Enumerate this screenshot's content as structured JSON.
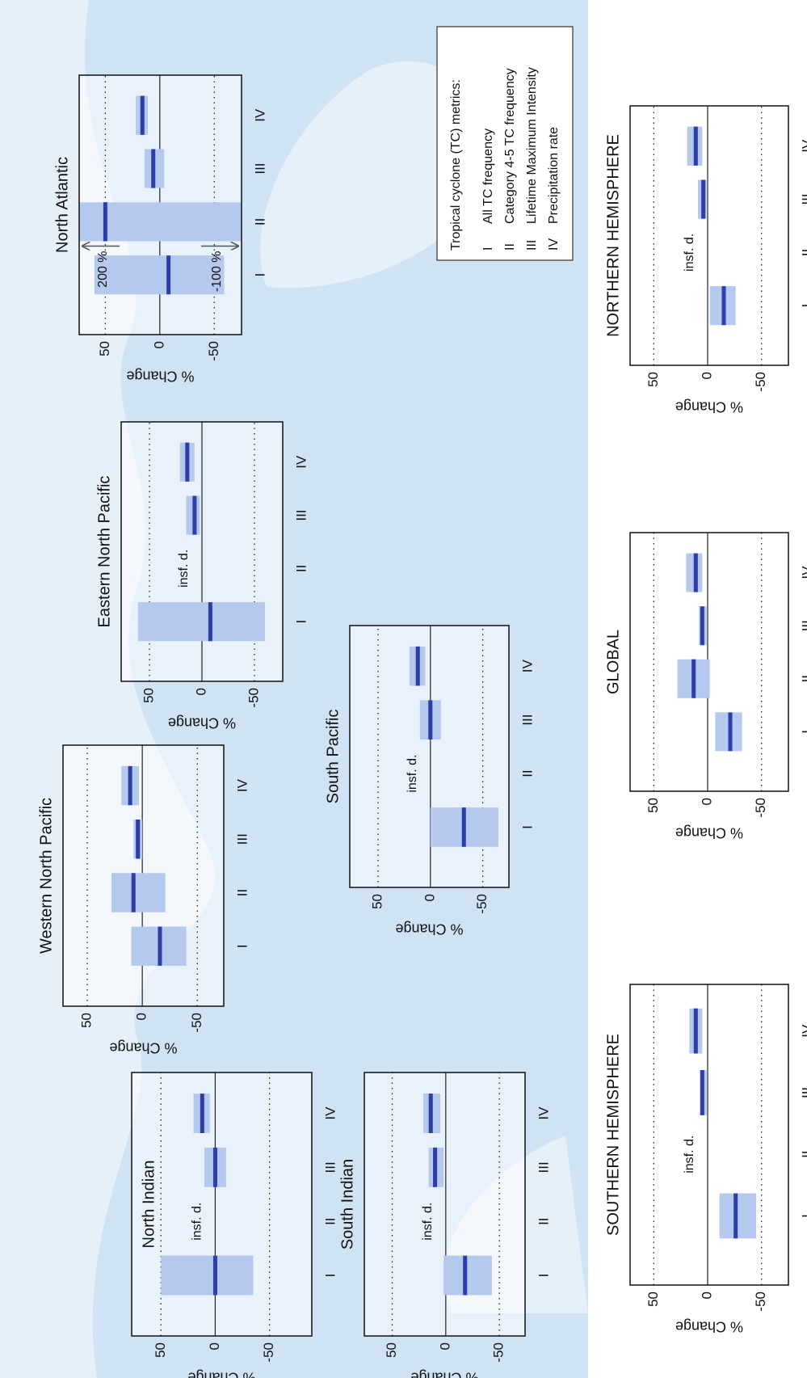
{
  "chart_data": [
    {
      "type": "range-bar",
      "title": "North Indian",
      "y_label": "% Change",
      "categories": [
        "I",
        "II",
        "III",
        "IV"
      ],
      "values": [
        0,
        null,
        0,
        12
      ],
      "lows": [
        -35,
        null,
        -10,
        5
      ],
      "highs": [
        50,
        null,
        10,
        20
      ],
      "notes": [
        null,
        "insf. d.",
        null,
        null
      ],
      "ylim": [
        -89,
        77
      ],
      "yticks": [
        -50,
        0,
        50
      ]
    },
    {
      "type": "range-bar",
      "title": "South Indian",
      "y_label": "% Change",
      "categories": [
        "I",
        "II",
        "III",
        "IV"
      ],
      "values": [
        -18,
        null,
        10,
        14
      ],
      "lows": [
        -43,
        null,
        2,
        5
      ],
      "highs": [
        2,
        null,
        16,
        21
      ],
      "notes": [
        null,
        "insf. d.",
        null,
        null
      ],
      "ylim": [
        -74,
        76
      ],
      "yticks": [
        -50,
        0,
        50
      ]
    },
    {
      "type": "range-bar",
      "title": "Western North Pacific",
      "y_label": "% Change",
      "categories": [
        "I",
        "II",
        "III",
        "IV"
      ],
      "values": [
        -16,
        8,
        4,
        11
      ],
      "lows": [
        -40,
        -21,
        0,
        3
      ],
      "highs": [
        10,
        28,
        8,
        19
      ],
      "ylim": [
        -74,
        72
      ],
      "yticks": [
        -50,
        0,
        50
      ]
    },
    {
      "type": "range-bar",
      "title": "South Pacific",
      "y_label": "% Change",
      "categories": [
        "I",
        "II",
        "III",
        "IV"
      ],
      "values": [
        -32,
        null,
        0,
        12
      ],
      "lows": [
        -65,
        null,
        -10,
        5
      ],
      "highs": [
        0,
        null,
        10,
        20
      ],
      "notes": [
        null,
        "insf. d.",
        null,
        null
      ],
      "ylim": [
        -75,
        77
      ],
      "yticks": [
        -50,
        0,
        50
      ]
    },
    {
      "type": "range-bar",
      "title": "Eastern North Pacific",
      "y_label": "% Change",
      "categories": [
        "I",
        "II",
        "III",
        "IV"
      ],
      "values": [
        -8,
        null,
        7,
        14
      ],
      "lows": [
        -60,
        null,
        2,
        7
      ],
      "highs": [
        61,
        null,
        15,
        21
      ],
      "notes": [
        null,
        "insf. d.",
        null,
        null
      ],
      "ylim": [
        -77,
        77
      ],
      "yticks": [
        -50,
        0,
        50
      ]
    },
    {
      "type": "range-bar",
      "title": "North Atlantic",
      "y_label": "% Change",
      "categories": [
        "I",
        "II",
        "III",
        "IV"
      ],
      "values": [
        -8,
        50,
        6,
        16
      ],
      "lows": [
        -59,
        -100,
        -4,
        11
      ],
      "highs": [
        60,
        200,
        14,
        22
      ],
      "high_labels": [
        null,
        "200 %",
        null,
        null
      ],
      "low_labels": [
        null,
        "-100 %",
        null,
        null
      ],
      "ylim": [
        -75,
        74
      ],
      "yticks": [
        -50,
        0,
        50
      ]
    },
    {
      "type": "range-bar",
      "title": "SOUTHERN HEMISPHERE",
      "y_label": "% Change",
      "categories": [
        "I",
        "II",
        "III",
        "IV"
      ],
      "values": [
        -26,
        null,
        5,
        11
      ],
      "lows": [
        -45,
        null,
        1,
        5
      ],
      "highs": [
        -11,
        null,
        7,
        17
      ],
      "notes": [
        null,
        "insf. d.",
        null,
        null
      ],
      "ylim": [
        -75,
        72
      ],
      "yticks": [
        -50,
        0,
        50
      ]
    },
    {
      "type": "range-bar",
      "title": "GLOBAL",
      "y_label": "% Change",
      "categories": [
        "I",
        "II",
        "III",
        "IV"
      ],
      "values": [
        -21,
        13,
        5,
        11
      ],
      "lows": [
        -32,
        -2,
        1,
        5
      ],
      "highs": [
        -7,
        28,
        8,
        20
      ],
      "ylim": [
        -75,
        72
      ],
      "yticks": [
        -50,
        0,
        50
      ]
    },
    {
      "type": "range-bar",
      "title": "NORTHERN HEMISPHERE",
      "y_label": "% Change",
      "categories": [
        "I",
        "II",
        "III",
        "IV"
      ],
      "values": [
        -15,
        null,
        4,
        11
      ],
      "lows": [
        -26,
        null,
        1,
        5
      ],
      "highs": [
        -2,
        null,
        9,
        19
      ],
      "notes": [
        null,
        "insf. d.",
        null,
        null
      ],
      "ylim": [
        -75,
        72
      ],
      "yticks": [
        -50,
        0,
        50
      ]
    }
  ],
  "legend": {
    "title": "Tropical cyclone (TC) metrics:",
    "items": [
      {
        "numeral": "I",
        "text": "All TC frequency"
      },
      {
        "numeral": "II",
        "text": "Category 4-5 TC frequency"
      },
      {
        "numeral": "III",
        "text": "Lifetime Maximum Intensity"
      },
      {
        "numeral": "IV",
        "text": "Precipitation rate"
      }
    ]
  }
}
